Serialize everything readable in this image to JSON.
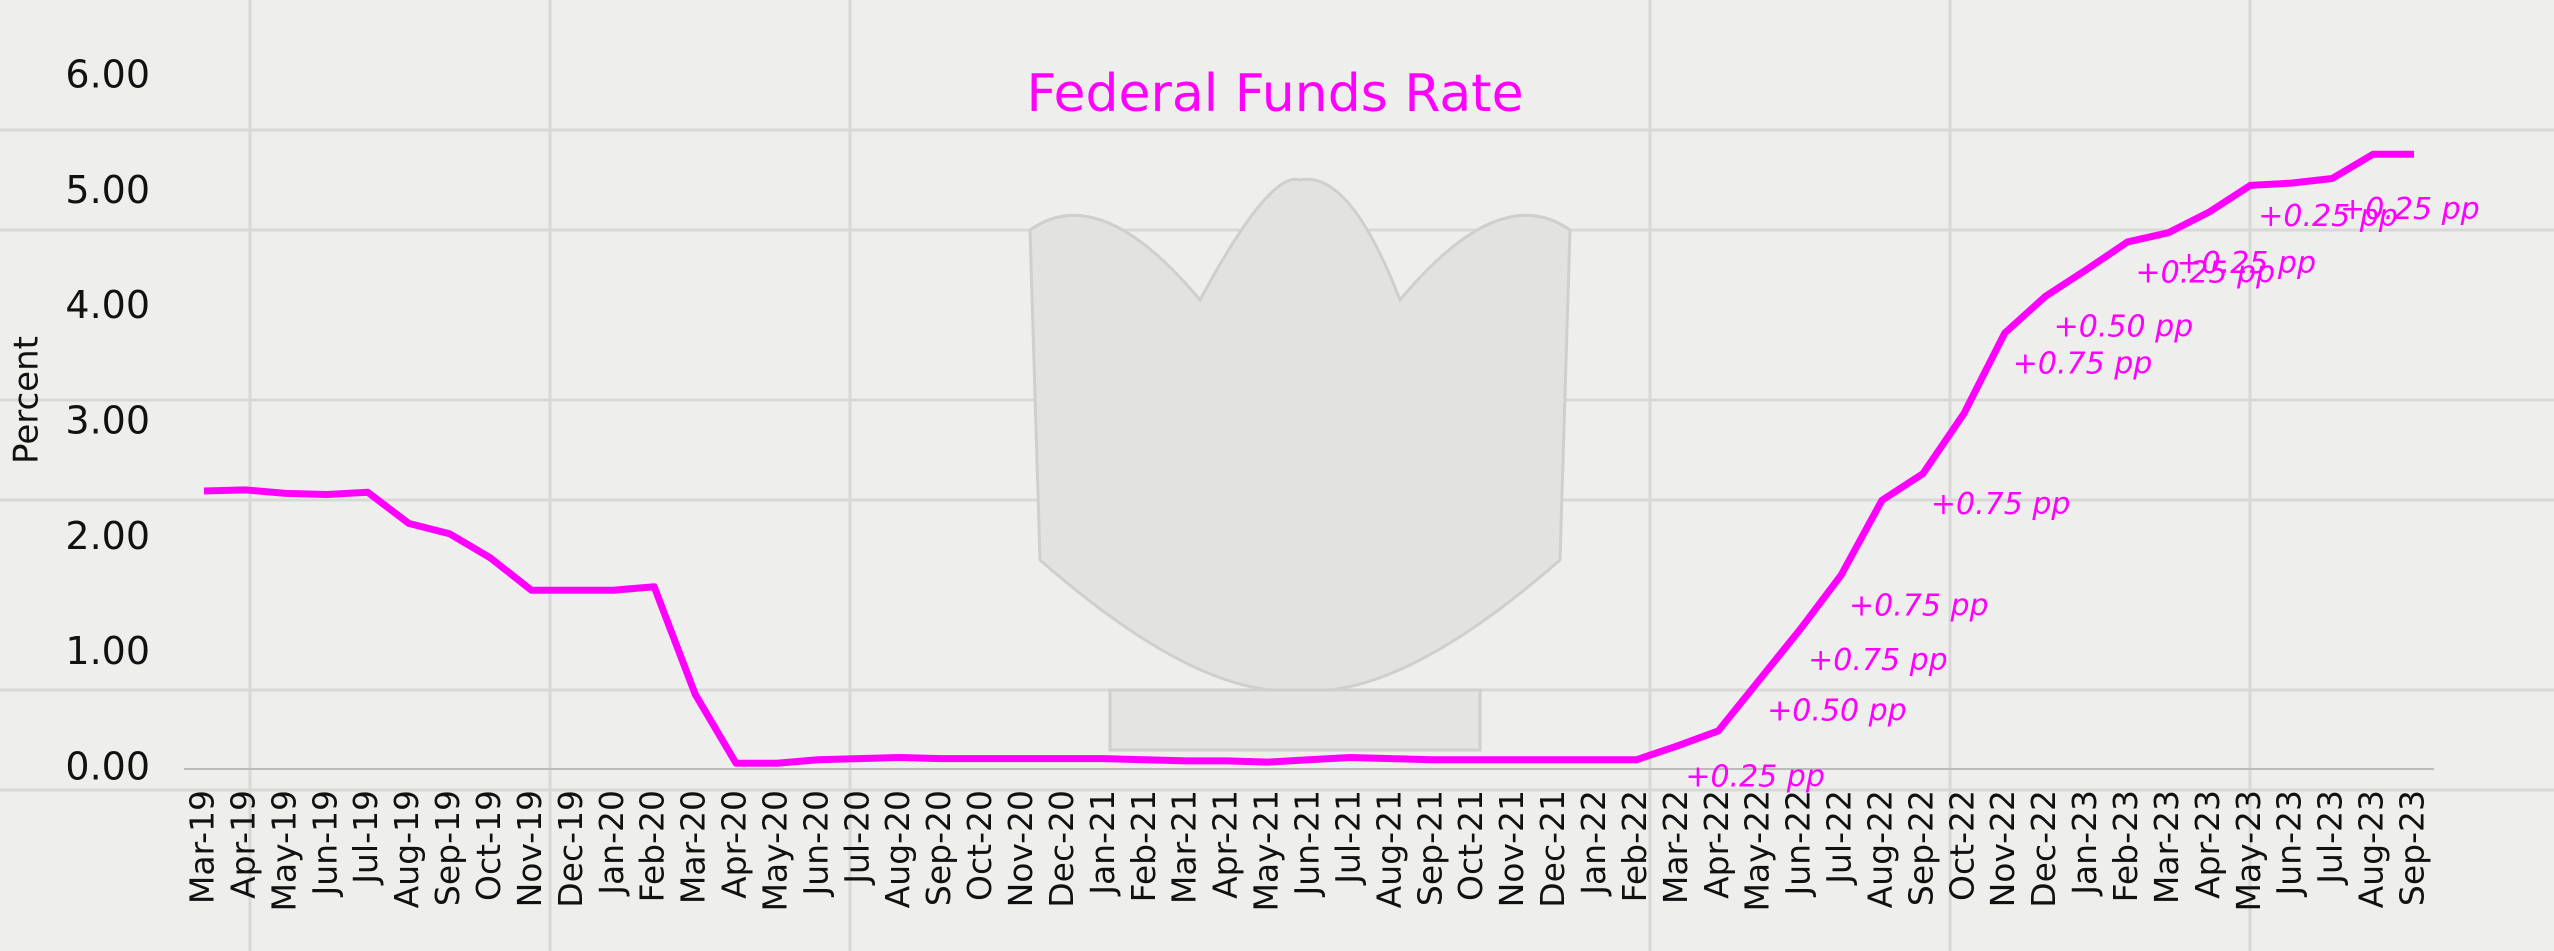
{
  "chart_data": {
    "type": "line",
    "title": "Federal Funds Rate",
    "y_label": "Percent",
    "categories": [
      "Mar-19",
      "Apr-19",
      "May-19",
      "Jun-19",
      "Jul-19",
      "Aug-19",
      "Sep-19",
      "Oct-19",
      "Nov-19",
      "Dec-19",
      "Jan-20",
      "Feb-20",
      "Mar-20",
      "Apr-20",
      "May-20",
      "Jun-20",
      "Jul-20",
      "Aug-20",
      "Sep-20",
      "Oct-20",
      "Nov-20",
      "Dec-20",
      "Jan-21",
      "Feb-21",
      "Mar-21",
      "Apr-21",
      "May-21",
      "Jun-21",
      "Jul-21",
      "Aug-21",
      "Sep-21",
      "Oct-21",
      "Nov-21",
      "Dec-21",
      "Jan-22",
      "Feb-22",
      "Mar-22",
      "Apr-22",
      "May-22",
      "Jun-22",
      "Jul-22",
      "Aug-22",
      "Sep-22",
      "Oct-22",
      "Nov-22",
      "Dec-22",
      "Jan-23",
      "Feb-23",
      "Mar-23",
      "Apr-23",
      "May-23",
      "Jun-23",
      "Jul-23",
      "Aug-23",
      "Sep-23"
    ],
    "series": [
      {
        "name": "Federal Funds Rate",
        "color": "#ff00ff",
        "values": [
          2.41,
          2.42,
          2.39,
          2.38,
          2.4,
          2.13,
          2.04,
          1.83,
          1.55,
          1.55,
          1.55,
          1.58,
          0.65,
          0.05,
          0.05,
          0.08,
          0.09,
          0.1,
          0.09,
          0.09,
          0.09,
          0.09,
          0.09,
          0.08,
          0.07,
          0.07,
          0.06,
          0.08,
          0.1,
          0.09,
          0.08,
          0.08,
          0.08,
          0.08,
          0.08,
          0.08,
          0.2,
          0.33,
          0.77,
          1.21,
          1.68,
          2.33,
          2.56,
          3.08,
          3.78,
          4.1,
          4.33,
          4.57,
          4.65,
          4.83,
          5.06,
          5.08,
          5.12,
          5.33,
          5.33
        ]
      }
    ],
    "ylim": [
      0,
      6
    ],
    "yticks": [
      {
        "value": 0,
        "label": "0.00"
      },
      {
        "value": 1,
        "label": "1.00"
      },
      {
        "value": 2,
        "label": "2.00"
      },
      {
        "value": 3,
        "label": "3.00"
      },
      {
        "value": 4,
        "label": "4.00"
      },
      {
        "value": 5,
        "label": "5.00"
      },
      {
        "value": 6,
        "label": "6.00"
      }
    ],
    "annotations": [
      {
        "text": "+0.25 pp",
        "x": "Mar-22"
      },
      {
        "text": "+0.50 pp",
        "x": "May-22"
      },
      {
        "text": "+0.75 pp",
        "x": "Jun-22"
      },
      {
        "text": "+0.75 pp",
        "x": "Jul-22"
      },
      {
        "text": "+0.75 pp",
        "x": "Sep-22"
      },
      {
        "text": "+0.75 pp",
        "x": "Nov-22"
      },
      {
        "text": "+0.50 pp",
        "x": "Dec-22"
      },
      {
        "text": "+0.25 pp",
        "x": "Feb-23"
      },
      {
        "text": "+0.25 pp",
        "x": "Mar-23"
      },
      {
        "text": "+0.25 pp",
        "x": "May-23"
      },
      {
        "text": "+0.25 pp",
        "x": "Jul-23"
      }
    ]
  }
}
